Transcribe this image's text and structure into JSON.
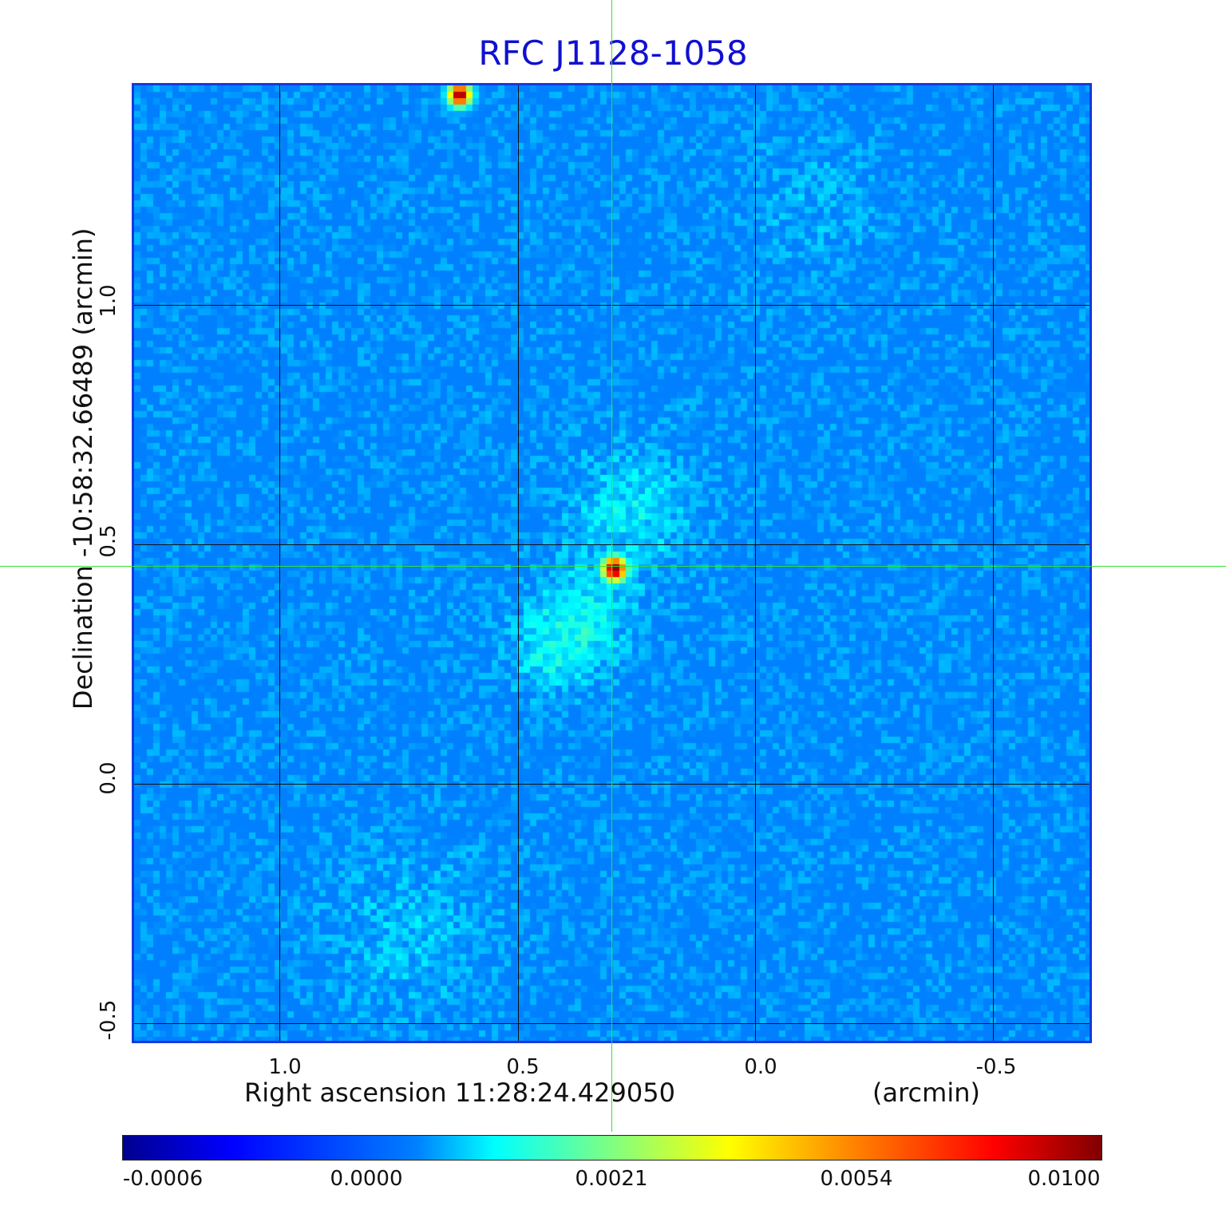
{
  "title": "RFC J1128-1058",
  "axes": {
    "x_label": "Right ascension  11:28:24.429050",
    "x_unit": "(arcmin)",
    "y_label": "Declination  -10:58:32.66489",
    "y_unit": "(arcmin)",
    "x_ticks": [
      "1.0",
      "0.5",
      "0.0",
      "-0.5"
    ],
    "y_ticks": [
      "1.0",
      "0.5",
      "0.0",
      "-0.5"
    ]
  },
  "colorbar": {
    "ticks": [
      "-0.0006",
      "0.0000",
      "0.0021",
      "0.0054",
      "0.0100"
    ],
    "colormap": "jet"
  },
  "colors": {
    "title": "#1010d0",
    "frame": "#1538e0",
    "crosshair": "#33e033",
    "grid": "#101010"
  }
}
